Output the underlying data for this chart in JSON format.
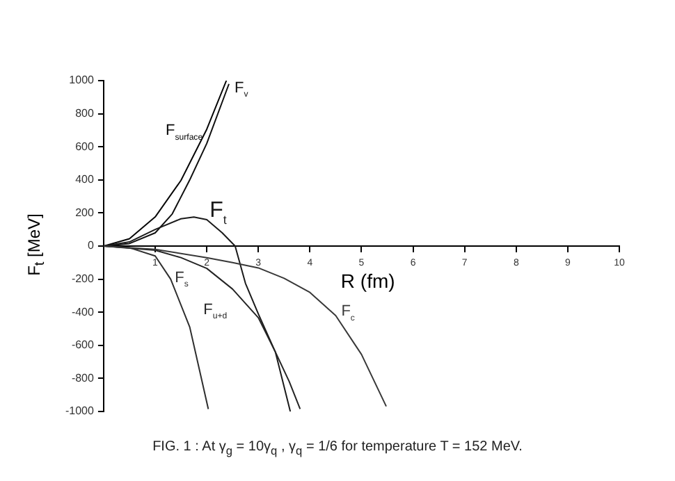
{
  "chart_data": {
    "type": "line",
    "xlabel": "R (fm)",
    "ylabel": "F$_{t}$ [MeV]",
    "xlim": [
      0,
      10
    ],
    "ylim": [
      -1000,
      1000
    ],
    "xticks": [
      1,
      2,
      3,
      4,
      5,
      6,
      7,
      8,
      9,
      10
    ],
    "yticks": [
      -1000,
      -800,
      -600,
      -400,
      -200,
      0,
      200,
      400,
      600,
      800,
      1000
    ],
    "grid": false,
    "legend": false,
    "marker": "none",
    "line_style": "solid",
    "series": [
      {
        "name": "F$_{surface}$",
        "color": "#050505",
        "x": [
          0,
          0.5,
          1,
          1.5,
          2,
          2.38
        ],
        "values": [
          0,
          44,
          176,
          397,
          706,
          1000
        ]
      },
      {
        "name": "F$_{v}$",
        "color": "#101010",
        "x": [
          0,
          0.5,
          1,
          1.33,
          1.67,
          2,
          2.43
        ],
        "values": [
          0,
          15,
          80,
          194,
          400,
          620,
          980
        ]
      },
      {
        "name": "F$_{t}$",
        "color": "#1a1a1a",
        "x": [
          0,
          0.5,
          1,
          1.5,
          1.75,
          2,
          2.3,
          2.55,
          2.75,
          3,
          3.33,
          3.62
        ],
        "values": [
          0,
          25,
          100,
          165,
          175,
          160,
          80,
          0,
          -225,
          -410,
          -640,
          -1000
        ]
      },
      {
        "name": "F$_{u+d}$",
        "color": "#242424",
        "x": [
          0,
          1,
          1.5,
          2,
          2.5,
          3,
          3.33,
          3.6,
          3.81
        ],
        "values": [
          0,
          -25,
          -70,
          -135,
          -260,
          -433,
          -640,
          -820,
          -985
        ]
      },
      {
        "name": "F$_{s}$",
        "color": "#2e2e2e",
        "x": [
          0,
          0.5,
          1,
          1.3,
          1.67,
          2.03
        ],
        "values": [
          0,
          -10,
          -60,
          -200,
          -490,
          -985
        ]
      },
      {
        "name": "F$_{c}$",
        "color": "#383838",
        "x": [
          0,
          1,
          2,
          2.5,
          3,
          3.5,
          4,
          4.5,
          5,
          5.48
        ],
        "values": [
          0,
          -20,
          -70,
          -100,
          -132,
          -195,
          -280,
          -420,
          -655,
          -969
        ]
      }
    ],
    "annotations": [
      "FIG. 1 : At  γ$_{g}$ = 10γ$_{q}$ , γ$_{q}$ = 1/6 for temperature T = 152 MeV."
    ]
  }
}
